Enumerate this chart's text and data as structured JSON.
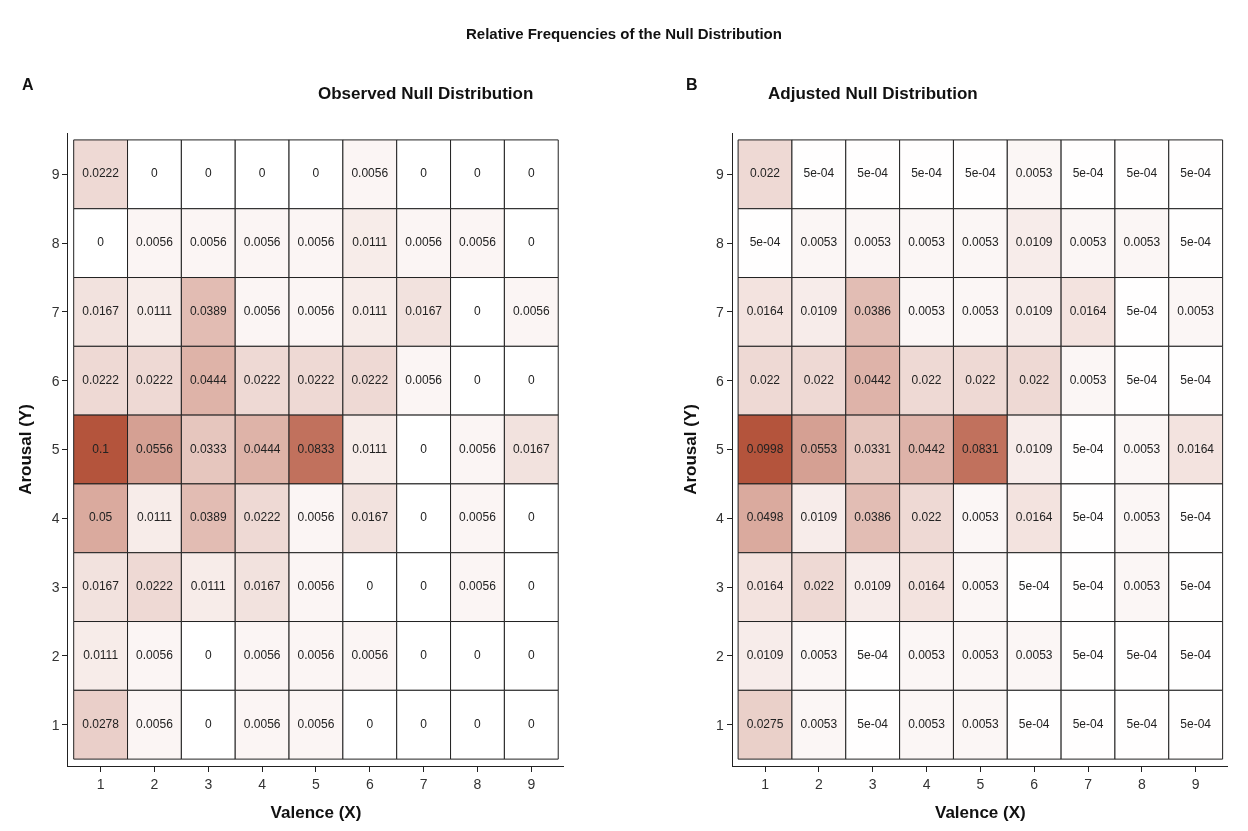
{
  "chart_data": [
    {
      "type": "heatmap",
      "title": "Observed Null Distribution",
      "xlabel": "Valence (X)",
      "ylabel": "Arousal (Y)",
      "data_labels": true,
      "annotations": [
        "Relative Frequencies of the Null Distribution",
        "A"
      ],
      "categories": [
        "1",
        "2",
        "3",
        "4",
        "5",
        "6",
        "7",
        "8",
        "9"
      ],
      "y_categories": [
        "9",
        "8",
        "7",
        "6",
        "5",
        "4",
        "3",
        "2",
        "1"
      ],
      "cells": [
        [
          0.0222,
          0,
          0,
          0,
          0,
          0.0056,
          0,
          0,
          0
        ],
        [
          0,
          0.0056,
          0.0056,
          0.0056,
          0.0056,
          0.0111,
          0.0056,
          0.0056,
          0
        ],
        [
          0.0167,
          0.0111,
          0.0389,
          0.0056,
          0.0056,
          0.0111,
          0.0167,
          0,
          0.0056
        ],
        [
          0.0222,
          0.0222,
          0.0444,
          0.0222,
          0.0222,
          0.0222,
          0.0056,
          0,
          0
        ],
        [
          0.1,
          0.0556,
          0.0333,
          0.0444,
          0.0833,
          0.0111,
          0,
          0.0056,
          0.0167
        ],
        [
          0.05,
          0.0111,
          0.0389,
          0.0222,
          0.0056,
          0.0167,
          0,
          0.0056,
          0
        ],
        [
          0.0167,
          0.0222,
          0.0111,
          0.0167,
          0.0056,
          0,
          0,
          0.0056,
          0
        ],
        [
          0.0111,
          0.0056,
          0,
          0.0056,
          0.0056,
          0.0056,
          0,
          0,
          0
        ],
        [
          0.0278,
          0.0056,
          0,
          0.0056,
          0.0056,
          0,
          0,
          0,
          0
        ]
      ]
    },
    {
      "type": "heatmap",
      "title": "Adjusted Null Distribution",
      "xlabel": "Valence (X)",
      "ylabel": "Arousal (Y)",
      "annotations": [
        "B"
      ],
      "categories": [
        "1",
        "2",
        "3",
        "4",
        "5",
        "6",
        "7",
        "8",
        "9"
      ],
      "y_categories": [
        "9",
        "8",
        "7",
        "6",
        "5",
        "4",
        "3",
        "2",
        "1"
      ],
      "cells": [
        [
          0.022,
          0.0005,
          0.0005,
          0.0005,
          0.0005,
          0.0053,
          0.0005,
          0.0005,
          0.0005
        ],
        [
          0.0005,
          0.0053,
          0.0053,
          0.0053,
          0.0053,
          0.0109,
          0.0053,
          0.0053,
          0.0005
        ],
        [
          0.0164,
          0.0109,
          0.0386,
          0.0053,
          0.0053,
          0.0109,
          0.0164,
          0.0005,
          0.0053
        ],
        [
          0.022,
          0.022,
          0.0442,
          0.022,
          0.022,
          0.022,
          0.0053,
          0.0005,
          0.0005
        ],
        [
          0.0998,
          0.0553,
          0.0331,
          0.0442,
          0.0831,
          0.0109,
          0.0005,
          0.0053,
          0.0164
        ],
        [
          0.0498,
          0.0109,
          0.0386,
          0.022,
          0.0053,
          0.0164,
          0.0005,
          0.0053,
          0.0005
        ],
        [
          0.0164,
          0.022,
          0.0109,
          0.0164,
          0.0053,
          0.0005,
          0.0005,
          0.0053,
          0.0005
        ],
        [
          0.0109,
          0.0053,
          0.0005,
          0.0053,
          0.0053,
          0.0053,
          0.0005,
          0.0005,
          0.0005
        ],
        [
          0.0275,
          0.0053,
          0.0005,
          0.0053,
          0.0053,
          0.0005,
          0.0005,
          0.0005,
          0.0005
        ]
      ],
      "cell_labels": [
        [
          "0.022",
          "5e-04",
          "5e-04",
          "5e-04",
          "5e-04",
          "0.0053",
          "5e-04",
          "5e-04",
          "5e-04"
        ],
        [
          "5e-04",
          "0.0053",
          "0.0053",
          "0.0053",
          "0.0053",
          "0.0109",
          "0.0053",
          "0.0053",
          "5e-04"
        ],
        [
          "0.0164",
          "0.0109",
          "0.0386",
          "0.0053",
          "0.0053",
          "0.0109",
          "0.0164",
          "5e-04",
          "0.0053"
        ],
        [
          "0.022",
          "0.022",
          "0.0442",
          "0.022",
          "0.022",
          "0.022",
          "0.0053",
          "5e-04",
          "5e-04"
        ],
        [
          "0.0998",
          "0.0553",
          "0.0331",
          "0.0442",
          "0.0831",
          "0.0109",
          "5e-04",
          "0.0053",
          "0.0164"
        ],
        [
          "0.0498",
          "0.0109",
          "0.0386",
          "0.022",
          "0.0053",
          "0.0164",
          "5e-04",
          "0.0053",
          "5e-04"
        ],
        [
          "0.0164",
          "0.022",
          "0.0109",
          "0.0164",
          "0.0053",
          "5e-04",
          "5e-04",
          "0.0053",
          "5e-04"
        ],
        [
          "0.0109",
          "0.0053",
          "5e-04",
          "0.0053",
          "0.0053",
          "0.0053",
          "5e-04",
          "5e-04",
          "5e-04"
        ],
        [
          "0.0275",
          "0.0053",
          "5e-04",
          "0.0053",
          "0.0053",
          "5e-04",
          "5e-04",
          "5e-04",
          "5e-04"
        ]
      ]
    }
  ]
}
